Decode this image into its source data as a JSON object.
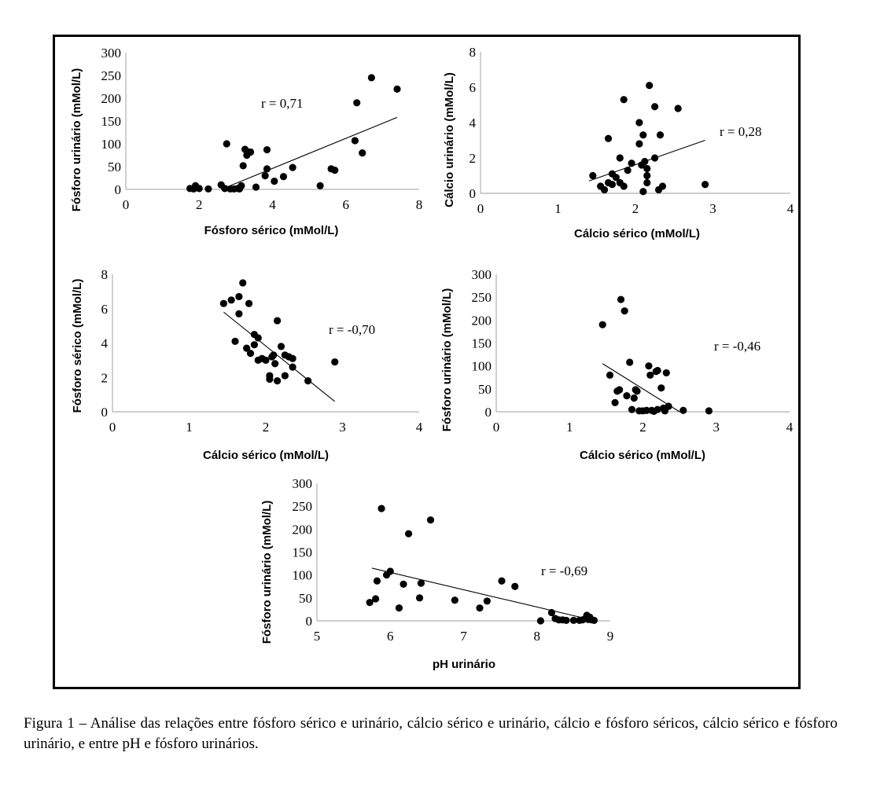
{
  "caption": "Figura 1 – Análise das relações entre fósforo sérico e urinário, cálcio sérico e urinário, cálcio e fósforo séricos, cálcio sérico e fósforo urinário, e entre pH e fósforo urinários.",
  "chart_data": [
    {
      "type": "scatter",
      "xlabel": "Fósforo sérico (mMol/L)",
      "ylabel": "Fósforo urinário (mMol/L)",
      "xlim": [
        0,
        8
      ],
      "ylim": [
        0,
        300
      ],
      "xticks": [
        0,
        2,
        4,
        6,
        8
      ],
      "yticks": [
        0,
        50,
        100,
        150,
        200,
        250,
        300
      ],
      "annotation": "r = 0,71",
      "trendline": [
        [
          2.6,
          0
        ],
        [
          7.4,
          158
        ]
      ],
      "points": [
        [
          1.75,
          2
        ],
        [
          1.85,
          1
        ],
        [
          1.9,
          8
        ],
        [
          2.0,
          2
        ],
        [
          2.25,
          1
        ],
        [
          2.6,
          10
        ],
        [
          2.7,
          2
        ],
        [
          2.75,
          100
        ],
        [
          2.85,
          1
        ],
        [
          2.95,
          1
        ],
        [
          3.05,
          2
        ],
        [
          3.1,
          1
        ],
        [
          3.15,
          8
        ],
        [
          3.2,
          52
        ],
        [
          3.25,
          88
        ],
        [
          3.3,
          75
        ],
        [
          3.35,
          82
        ],
        [
          3.4,
          82
        ],
        [
          3.55,
          5
        ],
        [
          3.8,
          30
        ],
        [
          3.85,
          87
        ],
        [
          3.85,
          45
        ],
        [
          4.05,
          18
        ],
        [
          4.3,
          28
        ],
        [
          4.55,
          48
        ],
        [
          5.3,
          8
        ],
        [
          5.6,
          45
        ],
        [
          5.7,
          42
        ],
        [
          6.25,
          107
        ],
        [
          6.3,
          190
        ],
        [
          6.45,
          80
        ],
        [
          6.7,
          245
        ],
        [
          7.4,
          220
        ]
      ]
    },
    {
      "type": "scatter",
      "xlabel": "Cálcio sérico (mMol/L)",
      "ylabel": "Cálcio urinário  (mMol/L)",
      "xlim": [
        0,
        4
      ],
      "ylim": [
        0,
        8
      ],
      "xticks": [
        0,
        1,
        2,
        3,
        4
      ],
      "yticks": [
        0,
        2,
        4,
        6,
        8
      ],
      "annotation": "r = 0,28",
      "trendline": [
        [
          1.4,
          0.7
        ],
        [
          2.9,
          3.0
        ]
      ],
      "points": [
        [
          1.45,
          1.0
        ],
        [
          1.55,
          0.4
        ],
        [
          1.6,
          0.2
        ],
        [
          1.65,
          0.6
        ],
        [
          1.65,
          3.1
        ],
        [
          1.7,
          1.1
        ],
        [
          1.7,
          0.5
        ],
        [
          1.75,
          0.9
        ],
        [
          1.8,
          2.0
        ],
        [
          1.8,
          0.6
        ],
        [
          1.85,
          5.3
        ],
        [
          1.85,
          0.4
        ],
        [
          1.9,
          1.3
        ],
        [
          1.95,
          1.7
        ],
        [
          2.05,
          2.8
        ],
        [
          2.05,
          4.0
        ],
        [
          2.08,
          1.6
        ],
        [
          2.1,
          0.1
        ],
        [
          2.1,
          3.3
        ],
        [
          2.12,
          1.8
        ],
        [
          2.15,
          1.4
        ],
        [
          2.15,
          1.0
        ],
        [
          2.15,
          0.6
        ],
        [
          2.18,
          6.1
        ],
        [
          2.25,
          2.0
        ],
        [
          2.25,
          4.9
        ],
        [
          2.3,
          0.2
        ],
        [
          2.32,
          3.3
        ],
        [
          2.35,
          0.4
        ],
        [
          2.55,
          4.8
        ],
        [
          2.9,
          0.5
        ]
      ]
    },
    {
      "type": "scatter",
      "xlabel": "Cálcio sérico (mMol/L)",
      "ylabel": "Fósforo sérico (mMol/L)",
      "xlim": [
        0,
        4
      ],
      "ylim": [
        0,
        8
      ],
      "xticks": [
        0,
        1,
        2,
        3,
        4
      ],
      "yticks": [
        0,
        2,
        4,
        6,
        8
      ],
      "annotation": "r = -0,70",
      "trendline": [
        [
          1.45,
          5.8
        ],
        [
          2.9,
          0.6
        ]
      ],
      "points": [
        [
          1.45,
          6.3
        ],
        [
          1.55,
          6.5
        ],
        [
          1.6,
          4.1
        ],
        [
          1.65,
          5.7
        ],
        [
          1.65,
          6.7
        ],
        [
          1.7,
          7.5
        ],
        [
          1.75,
          3.7
        ],
        [
          1.78,
          6.3
        ],
        [
          1.8,
          3.4
        ],
        [
          1.85,
          4.5
        ],
        [
          1.85,
          3.9
        ],
        [
          1.9,
          3.0
        ],
        [
          1.9,
          4.3
        ],
        [
          1.95,
          3.1
        ],
        [
          2.0,
          3.0
        ],
        [
          2.05,
          2.1
        ],
        [
          2.05,
          1.9
        ],
        [
          2.08,
          3.2
        ],
        [
          2.1,
          3.3
        ],
        [
          2.12,
          2.8
        ],
        [
          2.15,
          1.8
        ],
        [
          2.15,
          5.3
        ],
        [
          2.2,
          3.8
        ],
        [
          2.25,
          2.1
        ],
        [
          2.25,
          3.3
        ],
        [
          2.3,
          3.2
        ],
        [
          2.35,
          2.6
        ],
        [
          2.35,
          3.1
        ],
        [
          2.55,
          1.8
        ],
        [
          2.9,
          2.9
        ]
      ]
    },
    {
      "type": "scatter",
      "xlabel": "Cálcio sérico (mMol/L)",
      "ylabel": "Fósforo urinário  (mMol/L)",
      "xlim": [
        0,
        4
      ],
      "ylim": [
        0,
        300
      ],
      "xticks": [
        0,
        1,
        2,
        3,
        4
      ],
      "yticks": [
        0,
        50,
        100,
        150,
        200,
        250,
        300
      ],
      "annotation": "r = -0,46",
      "trendline": [
        [
          1.45,
          105
        ],
        [
          2.5,
          0
        ]
      ],
      "points": [
        [
          1.45,
          190
        ],
        [
          1.55,
          80
        ],
        [
          1.62,
          20
        ],
        [
          1.65,
          45
        ],
        [
          1.68,
          48
        ],
        [
          1.7,
          245
        ],
        [
          1.75,
          220
        ],
        [
          1.78,
          35
        ],
        [
          1.82,
          108
        ],
        [
          1.85,
          5
        ],
        [
          1.88,
          30
        ],
        [
          1.9,
          48
        ],
        [
          1.92,
          45
        ],
        [
          1.95,
          2
        ],
        [
          2.0,
          2
        ],
        [
          2.05,
          3
        ],
        [
          2.08,
          100
        ],
        [
          2.1,
          80
        ],
        [
          2.12,
          3
        ],
        [
          2.15,
          1
        ],
        [
          2.18,
          88
        ],
        [
          2.2,
          90
        ],
        [
          2.2,
          5
        ],
        [
          2.25,
          52
        ],
        [
          2.28,
          8
        ],
        [
          2.3,
          2
        ],
        [
          2.32,
          85
        ],
        [
          2.35,
          12
        ],
        [
          2.55,
          3
        ],
        [
          2.9,
          2
        ]
      ]
    },
    {
      "type": "scatter",
      "xlabel": "pH urinário",
      "ylabel": "Fósforo urinário  (mMol/L)",
      "xlim": [
        5,
        9
      ],
      "ylim": [
        0,
        300
      ],
      "xticks": [
        5,
        6,
        7,
        8,
        9
      ],
      "yticks": [
        0,
        50,
        100,
        150,
        200,
        250,
        300
      ],
      "annotation": "r = -0,69",
      "trendline": [
        [
          5.75,
          115
        ],
        [
          8.8,
          0
        ]
      ],
      "points": [
        [
          5.72,
          40
        ],
        [
          5.8,
          48
        ],
        [
          5.82,
          87
        ],
        [
          5.88,
          245
        ],
        [
          5.95,
          100
        ],
        [
          6.0,
          108
        ],
        [
          6.12,
          28
        ],
        [
          6.18,
          80
        ],
        [
          6.25,
          190
        ],
        [
          6.4,
          50
        ],
        [
          6.42,
          82
        ],
        [
          6.55,
          220
        ],
        [
          6.88,
          45
        ],
        [
          7.22,
          28
        ],
        [
          7.32,
          43
        ],
        [
          7.52,
          87
        ],
        [
          7.7,
          75
        ],
        [
          8.05,
          0
        ],
        [
          8.2,
          18
        ],
        [
          8.25,
          5
        ],
        [
          8.3,
          2
        ],
        [
          8.35,
          2
        ],
        [
          8.4,
          1
        ],
        [
          8.5,
          1
        ],
        [
          8.58,
          1
        ],
        [
          8.62,
          2
        ],
        [
          8.66,
          5
        ],
        [
          8.68,
          12
        ],
        [
          8.7,
          3
        ],
        [
          8.72,
          8
        ],
        [
          8.75,
          2
        ],
        [
          8.78,
          1
        ]
      ]
    }
  ]
}
